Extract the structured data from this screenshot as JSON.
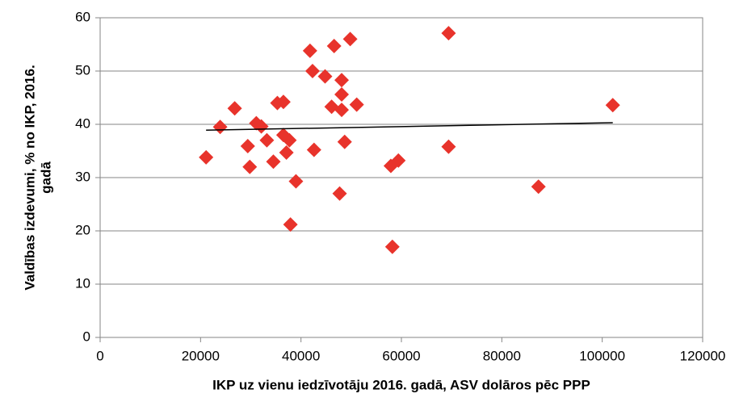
{
  "chart_data": {
    "type": "scatter",
    "xlabel": "IKP uz vienu iedzīvotāju 2016. gadā, ASV dolāros pēc PPP",
    "ylabel": [
      "Valdības izdevumi, % no IKP, 2016.",
      "gadā"
    ],
    "x": [
      21100,
      26800,
      23900,
      29400,
      29800,
      31100,
      32100,
      33200,
      35300,
      36500,
      36500,
      37700,
      37100,
      39000,
      37900,
      34500,
      41800,
      42300,
      44800,
      46600,
      49800,
      48100,
      48100,
      48100,
      46100,
      51100,
      48700,
      47700,
      42600,
      57900,
      59400,
      58200,
      69400,
      69400,
      87300,
      102100
    ],
    "values": [
      33.8,
      43.0,
      39.5,
      35.9,
      32.0,
      40.2,
      39.6,
      37.0,
      44.0,
      44.2,
      38.0,
      37.0,
      34.7,
      29.3,
      21.2,
      33.0,
      53.8,
      50.0,
      49.0,
      54.7,
      56.0,
      48.3,
      45.6,
      42.7,
      43.3,
      43.7,
      36.7,
      27.0,
      35.2,
      32.2,
      33.2,
      17.0,
      57.1,
      35.8,
      28.3,
      43.6
    ],
    "color": "#e8332b",
    "trendline": {
      "x": [
        21100,
        102100
      ],
      "values": [
        38.9,
        40.3
      ],
      "color": "#000000"
    },
    "xlim": [
      0,
      120000
    ],
    "xticks": [
      0,
      20000,
      40000,
      60000,
      80000,
      100000,
      120000
    ],
    "ylim": [
      0,
      60
    ],
    "yticks": [
      0,
      10,
      20,
      30,
      40,
      50,
      60
    ],
    "grid": true
  }
}
